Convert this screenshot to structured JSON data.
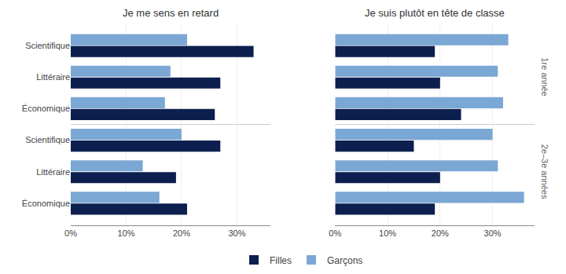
{
  "chart_data": [
    {
      "type": "bar",
      "orientation": "horizontal",
      "title": "Je me sens en retard",
      "categories": [
        "Scientifique",
        "Littéraire",
        "Économique",
        "Scientifique",
        "Littéraire",
        "Économique"
      ],
      "series": [
        {
          "name": "Filles",
          "color": "#0d1f4e",
          "values": [
            33,
            27,
            26,
            27,
            19,
            21
          ]
        },
        {
          "name": "Garçons",
          "color": "#7ba7d4",
          "values": [
            21,
            18,
            17,
            20,
            13,
            16
          ]
        }
      ],
      "xlim": [
        0,
        36
      ],
      "xticks": [
        {
          "value": 0,
          "label": "0%"
        },
        {
          "value": 10,
          "label": "10%"
        },
        {
          "value": 20,
          "label": "20%"
        },
        {
          "value": 30,
          "label": "30%"
        }
      ],
      "grid": true,
      "legend": "bottom"
    },
    {
      "type": "bar",
      "orientation": "horizontal",
      "title": "Je suis plutôt en tête de classe",
      "categories": [
        "Scientifique",
        "Littéraire",
        "Économique",
        "Scientifique",
        "Littéraire",
        "Économique"
      ],
      "series": [
        {
          "name": "Filles",
          "color": "#0d1f4e",
          "values": [
            19,
            20,
            24,
            15,
            20,
            19
          ]
        },
        {
          "name": "Garçons",
          "color": "#7ba7d4",
          "values": [
            33,
            31,
            32,
            30,
            31,
            36
          ]
        }
      ],
      "xlim": [
        0,
        38
      ],
      "xticks": [
        {
          "value": 0,
          "label": "0%"
        },
        {
          "value": 10,
          "label": "10%"
        },
        {
          "value": 20,
          "label": "20%"
        },
        {
          "value": 30,
          "label": "30%"
        }
      ],
      "grid": true,
      "tick_labels": "x",
      "annotations": [
        {
          "text": "1re année",
          "y": 1
        },
        {
          "text": "2e–3e années",
          "y": 4
        }
      ]
    }
  ]
}
